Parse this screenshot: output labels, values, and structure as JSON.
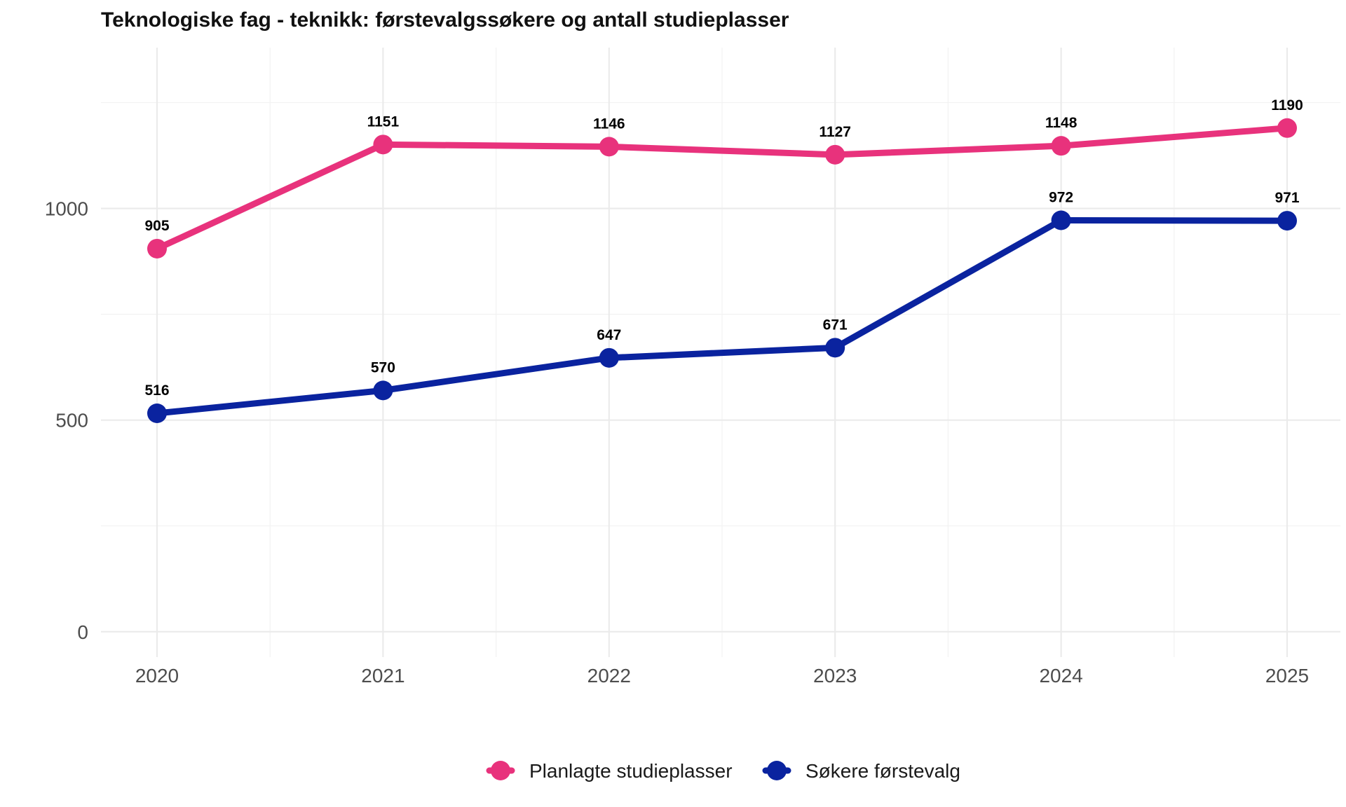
{
  "chart_data": {
    "type": "line",
    "title": "Teknologiske fag - teknikk: førstevalgssøkere og antall studieplasser",
    "xlabel": "",
    "ylabel": "",
    "x": [
      "2020",
      "2021",
      "2022",
      "2023",
      "2024",
      "2025"
    ],
    "y_ticks": [
      "0",
      "500",
      "1000"
    ],
    "ylim": [
      -60,
      1380
    ],
    "grid": true,
    "legend_position": "bottom",
    "series": [
      {
        "name": "Planlagte studieplasser",
        "color": "#E8327C",
        "values": [
          905,
          1151,
          1146,
          1127,
          1148,
          1190
        ]
      },
      {
        "name": "Søkere førstevalg",
        "color": "#0A239F",
        "values": [
          516,
          570,
          647,
          671,
          972,
          971
        ]
      }
    ]
  }
}
